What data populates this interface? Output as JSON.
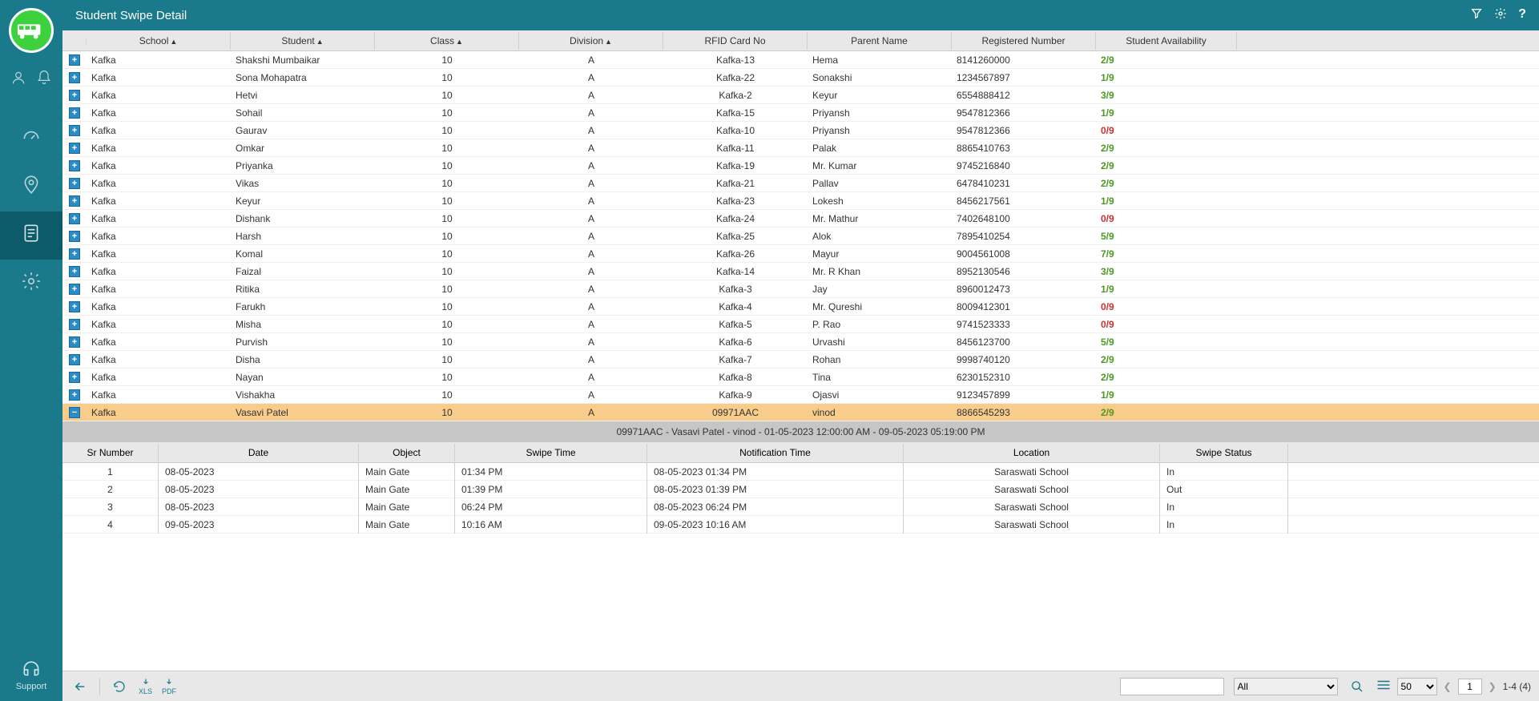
{
  "page_title": "Student Swipe Detail",
  "support_label": "Support",
  "main_columns": {
    "school": "School",
    "student": "Student",
    "class": "Class",
    "division": "Division",
    "rfid": "RFID Card No",
    "parent": "Parent Name",
    "reg": "Registered Number",
    "avail": "Student Availability"
  },
  "rows": [
    {
      "school": "Kafka",
      "student": "Shakshi Mumbaikar",
      "class": "10",
      "div": "A",
      "rfid": "Kafka-13",
      "parent": "Hema",
      "reg": "8141260000",
      "avail": "2/9",
      "color": "g",
      "expanded": false
    },
    {
      "school": "Kafka",
      "student": "Sona Mohapatra",
      "class": "10",
      "div": "A",
      "rfid": "Kafka-22",
      "parent": "Sonakshi",
      "reg": "1234567897",
      "avail": "1/9",
      "color": "g",
      "expanded": false
    },
    {
      "school": "Kafka",
      "student": "Hetvi",
      "class": "10",
      "div": "A",
      "rfid": "Kafka-2",
      "parent": "Keyur",
      "reg": "6554888412",
      "avail": "3/9",
      "color": "g",
      "expanded": false
    },
    {
      "school": "Kafka",
      "student": "Sohail",
      "class": "10",
      "div": "A",
      "rfid": "Kafka-15",
      "parent": "Priyansh",
      "reg": "9547812366",
      "avail": "1/9",
      "color": "g",
      "expanded": false
    },
    {
      "school": "Kafka",
      "student": "Gaurav",
      "class": "10",
      "div": "A",
      "rfid": "Kafka-10",
      "parent": "Priyansh",
      "reg": "9547812366",
      "avail": "0/9",
      "color": "r",
      "expanded": false
    },
    {
      "school": "Kafka",
      "student": "Omkar",
      "class": "10",
      "div": "A",
      "rfid": "Kafka-11",
      "parent": "Palak",
      "reg": "8865410763",
      "avail": "2/9",
      "color": "g",
      "expanded": false
    },
    {
      "school": "Kafka",
      "student": "Priyanka",
      "class": "10",
      "div": "A",
      "rfid": "Kafka-19",
      "parent": "Mr. Kumar",
      "reg": "9745216840",
      "avail": "2/9",
      "color": "g",
      "expanded": false
    },
    {
      "school": "Kafka",
      "student": "Vikas",
      "class": "10",
      "div": "A",
      "rfid": "Kafka-21",
      "parent": "Pallav",
      "reg": "6478410231",
      "avail": "2/9",
      "color": "g",
      "expanded": false
    },
    {
      "school": "Kafka",
      "student": "Keyur",
      "class": "10",
      "div": "A",
      "rfid": "Kafka-23",
      "parent": "Lokesh",
      "reg": "8456217561",
      "avail": "1/9",
      "color": "g",
      "expanded": false
    },
    {
      "school": "Kafka",
      "student": "Dishank",
      "class": "10",
      "div": "A",
      "rfid": "Kafka-24",
      "parent": "Mr. Mathur",
      "reg": "7402648100",
      "avail": "0/9",
      "color": "r",
      "expanded": false
    },
    {
      "school": "Kafka",
      "student": "Harsh",
      "class": "10",
      "div": "A",
      "rfid": "Kafka-25",
      "parent": "Alok",
      "reg": "7895410254",
      "avail": "5/9",
      "color": "g",
      "expanded": false
    },
    {
      "school": "Kafka",
      "student": "Komal",
      "class": "10",
      "div": "A",
      "rfid": "Kafka-26",
      "parent": "Mayur",
      "reg": "9004561008",
      "avail": "7/9",
      "color": "g",
      "expanded": false
    },
    {
      "school": "Kafka",
      "student": "Faizal",
      "class": "10",
      "div": "A",
      "rfid": "Kafka-14",
      "parent": "Mr. R Khan",
      "reg": "8952130546",
      "avail": "3/9",
      "color": "g",
      "expanded": false
    },
    {
      "school": "Kafka",
      "student": "Ritika",
      "class": "10",
      "div": "A",
      "rfid": "Kafka-3",
      "parent": "Jay",
      "reg": "8960012473",
      "avail": "1/9",
      "color": "g",
      "expanded": false
    },
    {
      "school": "Kafka",
      "student": "Farukh",
      "class": "10",
      "div": "A",
      "rfid": "Kafka-4",
      "parent": "Mr. Qureshi",
      "reg": "8009412301",
      "avail": "0/9",
      "color": "r",
      "expanded": false
    },
    {
      "school": "Kafka",
      "student": "Misha",
      "class": "10",
      "div": "A",
      "rfid": "Kafka-5",
      "parent": "P. Rao",
      "reg": "9741523333",
      "avail": "0/9",
      "color": "r",
      "expanded": false
    },
    {
      "school": "Kafka",
      "student": "Purvish",
      "class": "10",
      "div": "A",
      "rfid": "Kafka-6",
      "parent": "Urvashi",
      "reg": "8456123700",
      "avail": "5/9",
      "color": "g",
      "expanded": false
    },
    {
      "school": "Kafka",
      "student": "Disha",
      "class": "10",
      "div": "A",
      "rfid": "Kafka-7",
      "parent": "Rohan",
      "reg": "9998740120",
      "avail": "2/9",
      "color": "g",
      "expanded": false
    },
    {
      "school": "Kafka",
      "student": "Nayan",
      "class": "10",
      "div": "A",
      "rfid": "Kafka-8",
      "parent": "Tina",
      "reg": "6230152310",
      "avail": "2/9",
      "color": "g",
      "expanded": false
    },
    {
      "school": "Kafka",
      "student": "Vishakha",
      "class": "10",
      "div": "A",
      "rfid": "Kafka-9",
      "parent": "Ojasvi",
      "reg": "9123457899",
      "avail": "1/9",
      "color": "g",
      "expanded": false
    },
    {
      "school": "Kafka",
      "student": "Vasavi Patel",
      "class": "10",
      "div": "A",
      "rfid": "09971AAC",
      "parent": "vinod",
      "reg": "8866545293",
      "avail": "2/9",
      "color": "g",
      "expanded": true
    }
  ],
  "detail_summary": "09971AAC - Vasavi Patel - vinod - 01-05-2023 12:00:00 AM - 09-05-2023 05:19:00 PM",
  "sub_columns": {
    "sr": "Sr Number",
    "date": "Date",
    "object": "Object",
    "swipe": "Swipe Time",
    "notif": "Notification Time",
    "loc": "Location",
    "status": "Swipe Status"
  },
  "sub_rows": [
    {
      "sr": "1",
      "date": "08-05-2023",
      "object": "Main Gate",
      "swipe": "01:34 PM",
      "notif": "08-05-2023 01:34 PM",
      "loc": "Saraswati School",
      "status": "In"
    },
    {
      "sr": "2",
      "date": "08-05-2023",
      "object": "Main Gate",
      "swipe": "01:39 PM",
      "notif": "08-05-2023 01:39 PM",
      "loc": "Saraswati School",
      "status": "Out"
    },
    {
      "sr": "3",
      "date": "08-05-2023",
      "object": "Main Gate",
      "swipe": "06:24 PM",
      "notif": "08-05-2023 06:24 PM",
      "loc": "Saraswati School",
      "status": "In"
    },
    {
      "sr": "4",
      "date": "09-05-2023",
      "object": "Main Gate",
      "swipe": "10:16 AM",
      "notif": "09-05-2023 10:16 AM",
      "loc": "Saraswati School",
      "status": "In"
    }
  ],
  "footer": {
    "filter_value": "All",
    "page_size": "50",
    "current_page": "1",
    "range": "1-4 (4)",
    "xls": "XLS",
    "pdf": "PDF"
  }
}
